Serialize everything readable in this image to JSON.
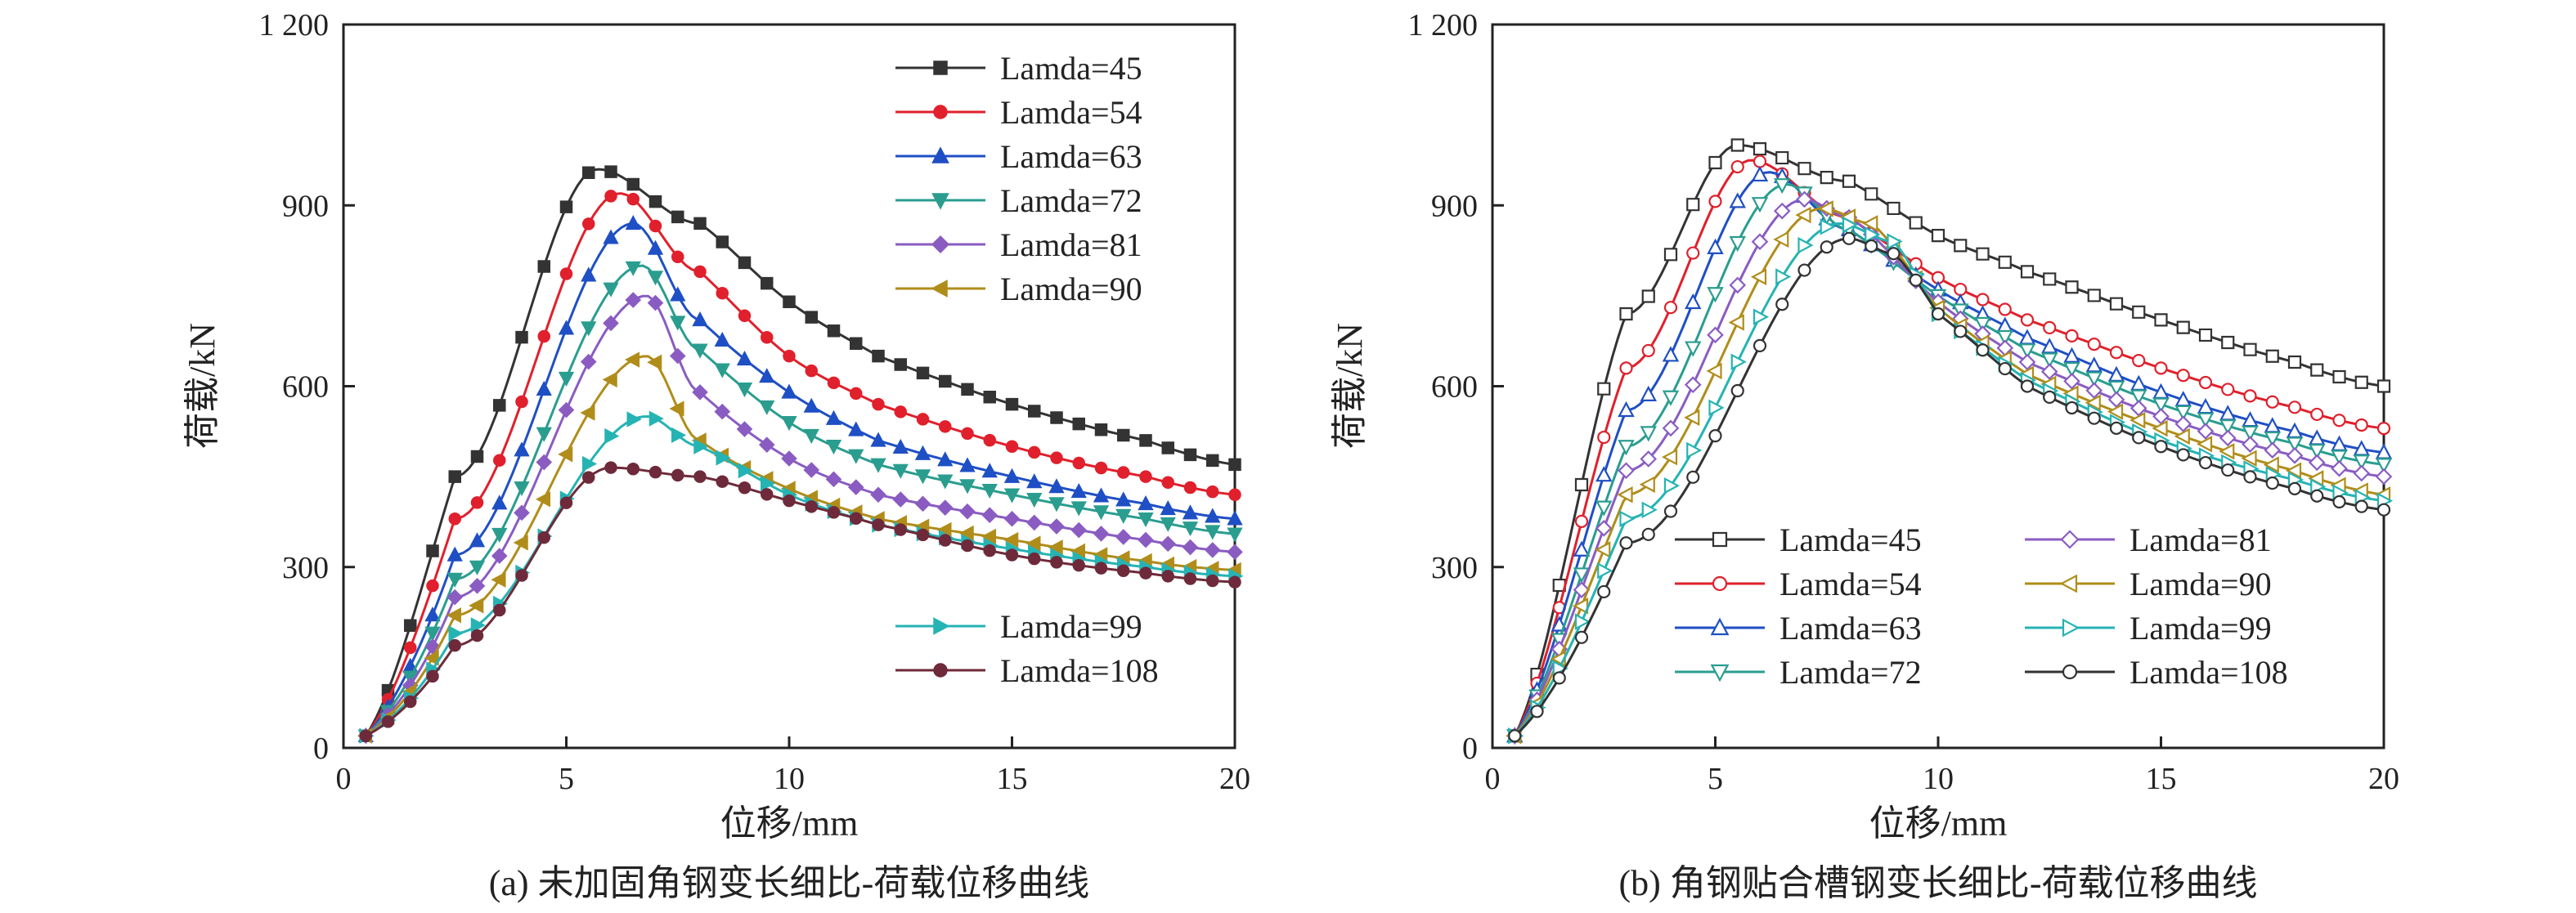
{
  "chart_data": [
    {
      "type": "line",
      "caption": "(a) 未加固角钢变长细比-荷载位移曲线",
      "xlabel": "位移/mm",
      "ylabel": "荷载/kN",
      "xlim": [
        0,
        20
      ],
      "ylim": [
        0,
        1200
      ],
      "xticks": [
        "0",
        "5",
        "10",
        "15",
        "20"
      ],
      "yticks": [
        "0",
        "300",
        "600",
        "900",
        "1 200"
      ],
      "grid": false,
      "legend_layout": "single column, top-right (first six) and lower-right (last two)",
      "marker_style": "filled",
      "series": [
        {
          "name": "Lamda=45",
          "color": "#333333",
          "marker": "square",
          "x": [
            0.5,
            2.5,
            5.7,
            8,
            10,
            12,
            15,
            18,
            20
          ],
          "y": [
            20,
            450,
            960,
            870,
            740,
            650,
            570,
            510,
            470
          ]
        },
        {
          "name": "Lamda=54",
          "color": "#e0202c",
          "marker": "circle",
          "x": [
            0.5,
            2.5,
            6.2,
            8,
            10,
            12,
            15,
            18,
            20
          ],
          "y": [
            20,
            380,
            920,
            790,
            650,
            570,
            500,
            450,
            420
          ]
        },
        {
          "name": "Lamda=63",
          "color": "#1f4fc4",
          "marker": "triangle-up",
          "x": [
            0.5,
            2.5,
            6.5,
            8,
            10,
            12,
            15,
            18,
            20
          ],
          "y": [
            20,
            320,
            870,
            710,
            590,
            510,
            450,
            405,
            380
          ]
        },
        {
          "name": "Lamda=72",
          "color": "#2a9d8f",
          "marker": "triangle-down",
          "x": [
            0.5,
            2.5,
            6.7,
            8,
            10,
            12,
            15,
            18,
            20
          ],
          "y": [
            20,
            280,
            800,
            660,
            540,
            470,
            420,
            380,
            355
          ]
        },
        {
          "name": "Lamda=81",
          "color": "#8a5cc2",
          "marker": "diamond",
          "x": [
            0.5,
            2.5,
            6.8,
            8,
            10,
            12,
            15,
            18,
            20
          ],
          "y": [
            20,
            250,
            750,
            590,
            480,
            420,
            380,
            345,
            325
          ]
        },
        {
          "name": "Lamda=90",
          "color": "#b08d1a",
          "marker": "triangle-left",
          "x": [
            0.5,
            2.5,
            6.8,
            8,
            10,
            12,
            15,
            18,
            20
          ],
          "y": [
            20,
            220,
            650,
            510,
            430,
            380,
            345,
            310,
            295
          ]
        },
        {
          "name": "Lamda=99",
          "color": "#26b3b3",
          "marker": "triangle-right",
          "x": [
            0.5,
            2.5,
            6.8,
            8,
            10,
            12,
            15,
            18,
            20
          ],
          "y": [
            20,
            190,
            550,
            500,
            420,
            370,
            330,
            300,
            285
          ]
        },
        {
          "name": "Lamda=108",
          "color": "#6e2a3a",
          "marker": "circle",
          "x": [
            0.5,
            2.5,
            6,
            8,
            10,
            12,
            15,
            18,
            20
          ],
          "y": [
            20,
            170,
            465,
            450,
            410,
            370,
            320,
            290,
            275
          ]
        }
      ]
    },
    {
      "type": "line",
      "caption": "(b) 角钢贴合槽钢变长细比-荷载位移曲线",
      "xlabel": "位移/mm",
      "ylabel": "荷载/kN",
      "xlim": [
        0,
        20
      ],
      "ylim": [
        0,
        1200
      ],
      "xticks": [
        "0",
        "5",
        "10",
        "15",
        "20"
      ],
      "yticks": [
        "0",
        "300",
        "600",
        "900",
        "1 200"
      ],
      "grid": false,
      "legend_layout": "two columns, lower-center",
      "marker_style": "hollow",
      "series": [
        {
          "name": "Lamda=45",
          "color": "#333333",
          "marker": "square",
          "x": [
            0.5,
            3,
            5.5,
            8,
            10,
            12,
            15,
            18,
            20
          ],
          "y": [
            20,
            720,
            1000,
            940,
            850,
            790,
            710,
            640,
            600
          ]
        },
        {
          "name": "Lamda=54",
          "color": "#e0202c",
          "marker": "circle",
          "x": [
            0.5,
            3,
            5.8,
            8,
            10,
            12,
            15,
            18,
            20
          ],
          "y": [
            20,
            630,
            975,
            880,
            780,
            710,
            630,
            565,
            530
          ]
        },
        {
          "name": "Lamda=63",
          "color": "#1f4fc4",
          "marker": "triangle-up",
          "x": [
            0.5,
            3,
            6.2,
            8,
            10,
            12,
            15,
            18,
            20
          ],
          "y": [
            20,
            560,
            955,
            860,
            760,
            680,
            590,
            525,
            490
          ]
        },
        {
          "name": "Lamda=72",
          "color": "#2a9d8f",
          "marker": "triangle-down",
          "x": [
            0.5,
            3,
            6.6,
            8,
            10,
            12,
            15,
            18,
            20
          ],
          "y": [
            20,
            500,
            935,
            860,
            750,
            660,
            570,
            505,
            470
          ]
        },
        {
          "name": "Lamda=81",
          "color": "#8a5cc2",
          "marker": "diamond",
          "x": [
            0.5,
            3,
            7,
            8,
            10,
            12,
            15,
            18,
            20
          ],
          "y": [
            20,
            460,
            910,
            880,
            740,
            640,
            550,
            485,
            450
          ]
        },
        {
          "name": "Lamda=90",
          "color": "#b08d1a",
          "marker": "triangle-left",
          "x": [
            0.5,
            3,
            7.4,
            8.5,
            10,
            12,
            15,
            18,
            20
          ],
          "y": [
            20,
            420,
            895,
            870,
            730,
            620,
            530,
            460,
            420
          ]
        },
        {
          "name": "Lamda=99",
          "color": "#26b3b3",
          "marker": "triangle-right",
          "x": [
            0.5,
            3,
            7.8,
            9,
            10,
            12,
            15,
            18,
            20
          ],
          "y": [
            20,
            380,
            870,
            840,
            720,
            610,
            510,
            445,
            410
          ]
        },
        {
          "name": "Lamda=108",
          "color": "#333333",
          "marker": "circle",
          "x": [
            0.5,
            3,
            8,
            9,
            10,
            12,
            15,
            18,
            20
          ],
          "y": [
            20,
            340,
            845,
            820,
            720,
            600,
            500,
            430,
            395
          ]
        }
      ]
    }
  ]
}
